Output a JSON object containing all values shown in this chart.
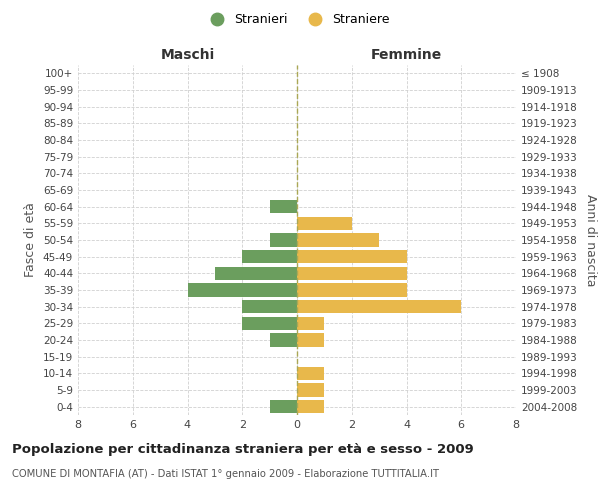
{
  "age_groups_bottom_to_top": [
    "0-4",
    "5-9",
    "10-14",
    "15-19",
    "20-24",
    "25-29",
    "30-34",
    "35-39",
    "40-44",
    "45-49",
    "50-54",
    "55-59",
    "60-64",
    "65-69",
    "70-74",
    "75-79",
    "80-84",
    "85-89",
    "90-94",
    "95-99",
    "100+"
  ],
  "birth_years_bottom_to_top": [
    "2004-2008",
    "1999-2003",
    "1994-1998",
    "1989-1993",
    "1984-1988",
    "1979-1983",
    "1974-1978",
    "1969-1973",
    "1964-1968",
    "1959-1963",
    "1954-1958",
    "1949-1953",
    "1944-1948",
    "1939-1943",
    "1934-1938",
    "1929-1933",
    "1924-1928",
    "1919-1923",
    "1914-1918",
    "1909-1913",
    "≤ 1908"
  ],
  "maschi_bottom_to_top": [
    1,
    0,
    0,
    0,
    1,
    2,
    2,
    4,
    3,
    2,
    1,
    0,
    1,
    0,
    0,
    0,
    0,
    0,
    0,
    0,
    0
  ],
  "femmine_bottom_to_top": [
    1,
    1,
    1,
    0,
    1,
    1,
    6,
    4,
    4,
    4,
    3,
    2,
    0,
    0,
    0,
    0,
    0,
    0,
    0,
    0,
    0
  ],
  "color_maschi": "#6b9e5e",
  "color_femmine": "#e8b84b",
  "title": "Popolazione per cittadinanza straniera per età e sesso - 2009",
  "subtitle": "COMUNE DI MONTAFIA (AT) - Dati ISTAT 1° gennaio 2009 - Elaborazione TUTTITALIA.IT",
  "label_maschi": "Maschi",
  "label_femmine": "Femmine",
  "ylabel_left": "Fasce di età",
  "ylabel_right": "Anni di nascita",
  "legend_maschi": "Stranieri",
  "legend_femmine": "Straniere",
  "xlim": 8,
  "background_color": "#ffffff",
  "grid_color": "#d0d0d0"
}
